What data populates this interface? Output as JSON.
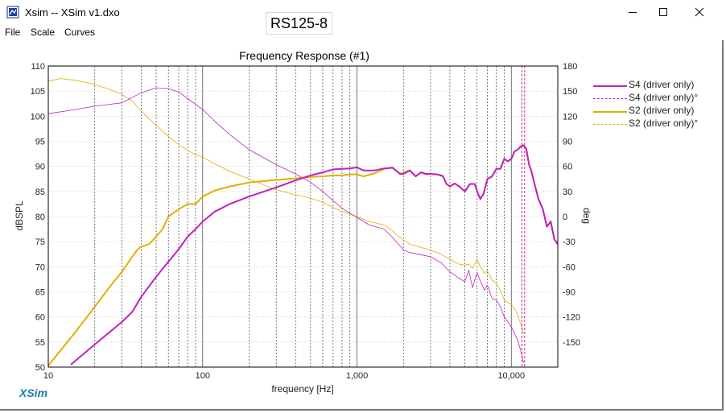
{
  "window": {
    "title": "Xsim -- XSim v1.dxo",
    "overlay_label": "RS125-8",
    "minimize_icon": "minimize-icon",
    "maximize_icon": "maximize-icon",
    "close_icon": "close-icon"
  },
  "menu": {
    "items": [
      "File",
      "Scale",
      "Curves"
    ]
  },
  "brand": {
    "logo_text": "XSim",
    "color": "#1a7fa8"
  },
  "colors": {
    "s4": "#c020c0",
    "s2": "#e0b000",
    "overlap": "#f04000",
    "title": "#1a1aa0",
    "vlines": "#d01080"
  },
  "chart_data": {
    "type": "line",
    "title": "Frequency Response (#1)",
    "xlabel": "frequency [Hz]",
    "ylabel": "dBSPL",
    "y2label": "deg",
    "xscale": "log",
    "xlim": [
      10,
      20000
    ],
    "ylim": [
      50,
      110
    ],
    "y2lim": [
      -180,
      180
    ],
    "xticks": [
      {
        "value": 10,
        "label": "10"
      },
      {
        "value": 100,
        "label": "100"
      },
      {
        "value": 1000,
        "label": "1,000"
      },
      {
        "value": 10000,
        "label": "10,000"
      }
    ],
    "yticks": [
      50,
      55,
      60,
      65,
      70,
      75,
      80,
      85,
      90,
      95,
      100,
      105,
      110
    ],
    "y2ticks": [
      -150,
      -120,
      -90,
      -60,
      -30,
      0,
      30,
      60,
      90,
      120,
      150,
      180
    ],
    "grid": true,
    "legend_position": "right",
    "series": [
      {
        "name": "S4 (driver only)",
        "axis": "left",
        "style": "solid",
        "x": [
          14,
          20,
          30,
          35,
          40,
          50,
          60,
          70,
          80,
          90,
          100,
          120,
          150,
          200,
          300,
          400,
          500,
          600,
          700,
          800,
          900,
          1000,
          1100,
          1300,
          1500,
          1700,
          1900,
          2000,
          2200,
          2400,
          2600,
          2800,
          3000,
          3300,
          3600,
          3800,
          4000,
          4300,
          4600,
          5000,
          5400,
          5800,
          6000,
          6300,
          6600,
          7000,
          7500,
          8000,
          8500,
          9000,
          9500,
          10000,
          10500,
          11000,
          11500,
          12000,
          12500,
          13000,
          13500,
          14000,
          15000,
          16000,
          17000,
          18000,
          19000,
          20000
        ],
        "y": [
          50.5,
          54.5,
          59,
          61,
          64,
          68,
          71,
          73.5,
          76,
          77.5,
          79,
          81,
          82.5,
          84,
          85.8,
          87.2,
          88.2,
          88.8,
          89.4,
          89.5,
          89.6,
          89.8,
          89.2,
          89.2,
          89.6,
          89.7,
          88.5,
          88.5,
          89.2,
          88.0,
          88.8,
          88.5,
          88.5,
          88.4,
          88.1,
          86.5,
          86.0,
          86.6,
          86.0,
          85.0,
          86.5,
          86.5,
          85.0,
          83.5,
          84.5,
          87.5,
          88.0,
          89.5,
          89.5,
          91.5,
          91.0,
          91.5,
          93.0,
          93.3,
          94.0,
          94.2,
          93.5,
          90.5,
          89.0,
          87.0,
          83.5,
          81.5,
          78.0,
          79.0,
          75.5,
          74.5
        ]
      },
      {
        "name": "S4 (driver only)°",
        "axis": "right",
        "style": "dashed",
        "x": [
          10,
          15,
          20,
          30,
          40,
          50,
          60,
          70,
          80,
          100,
          120,
          150,
          200,
          300,
          400,
          500,
          600,
          700,
          800,
          900,
          1000,
          1200,
          1500,
          1700,
          1900,
          2000,
          2200,
          2500,
          3000,
          3500,
          4000,
          4300,
          4600,
          5000,
          5300,
          5600,
          6000,
          6300,
          6700,
          7000,
          7500,
          8000,
          8500,
          9000,
          10000,
          10500,
          11000,
          11500,
          12000
        ],
        "y": [
          123,
          128,
          132,
          136,
          148,
          154,
          153,
          149,
          141,
          128,
          114,
          98,
          80,
          62,
          51,
          41,
          30,
          19,
          10,
          4,
          -1,
          -10,
          -15,
          -25,
          -35,
          -40,
          -43,
          -45,
          -48,
          -55,
          -66,
          -70,
          -74,
          -78,
          -64,
          -85,
          -67,
          -77,
          -88,
          -82,
          -98,
          -100,
          -108,
          -120,
          -132,
          -140,
          -148,
          -160,
          -175
        ]
      },
      {
        "name": "S2 (driver only)",
        "axis": "left",
        "style": "solid",
        "x": [
          10,
          15,
          20,
          25,
          30,
          35,
          38,
          40,
          45,
          50,
          55,
          60,
          70,
          80,
          90,
          100,
          120,
          150,
          200,
          300,
          400,
          500,
          600,
          700,
          800,
          900,
          1000,
          1100,
          1300,
          1500,
          1700,
          1900,
          2000,
          2200,
          2400,
          2600,
          2800,
          3000,
          3300,
          3600,
          3800,
          4000,
          4300,
          4600,
          5000,
          5400,
          5800,
          6000,
          6300,
          6600,
          7000,
          7500,
          8000,
          8500,
          9000,
          9500,
          10000,
          10500,
          11000,
          11500,
          12000,
          12500,
          13000,
          13500,
          14000,
          15000,
          16000,
          17000,
          18000,
          19000,
          20000
        ],
        "y": [
          50.3,
          57,
          62,
          66,
          69,
          72,
          73.5,
          74,
          74.5,
          76,
          77.5,
          80,
          81.5,
          82.5,
          82.5,
          84,
          85.2,
          86,
          86.8,
          87.3,
          87.6,
          87.9,
          88.0,
          88.2,
          88.2,
          88.4,
          88.4,
          88.0,
          88.6,
          89.5,
          89.8,
          88.5,
          88.8,
          89.2,
          88.0,
          88.8,
          88.4,
          88.5,
          88.4,
          88.0,
          86.5,
          86.0,
          86.6,
          86.0,
          85.0,
          86.5,
          86.5,
          85.0,
          83.5,
          84.5,
          87.5,
          88.0,
          89.5,
          89.5,
          91.5,
          91.0,
          91.5,
          93.0,
          93.3,
          94.0,
          94.2,
          93.5,
          90.5,
          89.0,
          87.0,
          83.5,
          81.5,
          78.0,
          79.0,
          75.5,
          74.5
        ]
      },
      {
        "name": "S2 (driver only)°",
        "axis": "right",
        "style": "dashed",
        "x": [
          10,
          12,
          15,
          20,
          25,
          30,
          35,
          40,
          50,
          60,
          70,
          80,
          90,
          100,
          120,
          150,
          200,
          300,
          400,
          500,
          600,
          700,
          800,
          900,
          1000,
          1200,
          1500,
          1700,
          1900,
          2000,
          2200,
          2500,
          3000,
          3500,
          4000,
          4300,
          4600,
          5000,
          5300,
          5600,
          6000,
          6300,
          6700,
          7000,
          7500,
          8000,
          8500,
          9000,
          10000,
          10500,
          11000,
          11500,
          12000
        ],
        "y": [
          162,
          165,
          163,
          158,
          152,
          146,
          138,
          126,
          109,
          96,
          86,
          79,
          74,
          71,
          63,
          54,
          45,
          32,
          26,
          22,
          17,
          11,
          6,
          3,
          0,
          -6,
          -10,
          -17,
          -25,
          -28,
          -33,
          -36,
          -40,
          -45,
          -51,
          -54,
          -57,
          -58,
          -57,
          -62,
          -51,
          -60,
          -68,
          -65,
          -76,
          -80,
          -88,
          -100,
          -105,
          -110,
          -118,
          -128,
          -140
        ]
      }
    ]
  }
}
